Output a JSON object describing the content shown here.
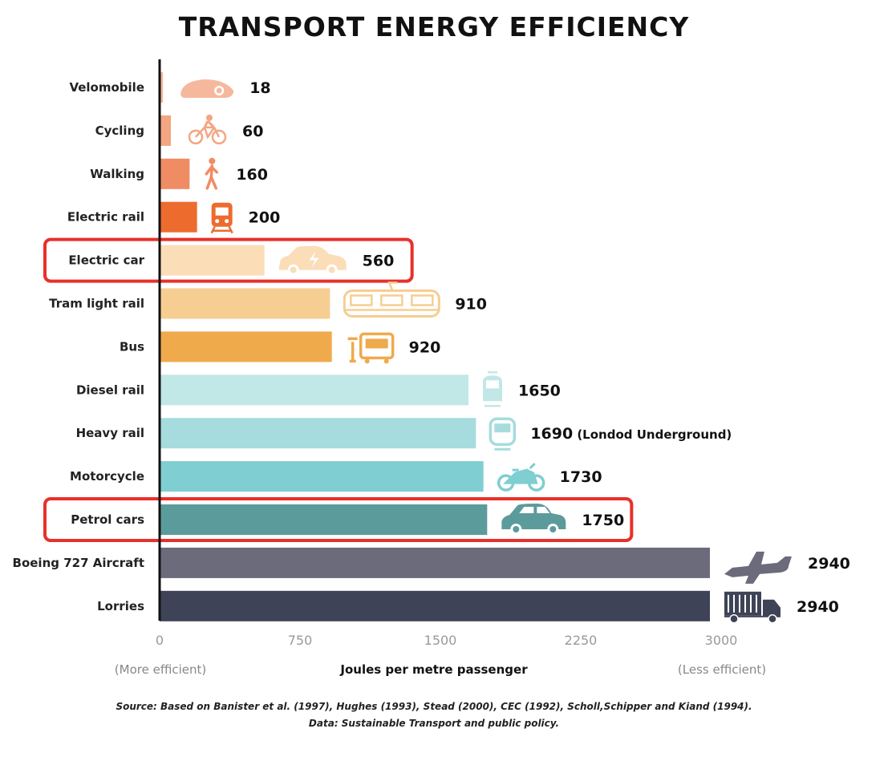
{
  "chart_data": {
    "type": "bar",
    "orientation": "horizontal",
    "title": "TRANSPORT ENERGY EFFICIENCY",
    "categories": [
      "Velomobile",
      "Cycling",
      "Walking",
      "Electric rail",
      "Electric car",
      "Tram light rail",
      "Bus",
      "Diesel rail",
      "Heavy rail",
      "Motorcycle",
      "Petrol cars",
      "Boeing 727 Aircraft",
      "Lorries"
    ],
    "values": [
      18,
      60,
      160,
      200,
      560,
      910,
      920,
      1650,
      1690,
      1730,
      1750,
      2940,
      2940
    ],
    "value_labels": [
      "18",
      "60",
      "160",
      "200",
      "560",
      "910",
      "920",
      "1650",
      "1690",
      "1730",
      "1750",
      "2940",
      "2940"
    ],
    "bar_colors": [
      "#F6B89D",
      "#F4A582",
      "#F08C64",
      "#EE6B2E",
      "#FBDDB8",
      "#F6CE92",
      "#EFAA4C",
      "#C2E7E7",
      "#A6DCDE",
      "#7FCED2",
      "#5C9B9B",
      "#6B6B7C",
      "#3F4357"
    ],
    "icon_colors": [
      "#F6B89D",
      "#F4A582",
      "#F08C64",
      "#EE6B2E",
      "#FBDDB8",
      "#F6CE92",
      "#EFAA4C",
      "#C2E7E7",
      "#A6DCDE",
      "#7FCED2",
      "#5C9B9B",
      "#6B6B7C",
      "#3F4357"
    ],
    "icons": [
      "velomobile-icon",
      "bicycle-icon",
      "walking-person-icon",
      "electric-train-icon",
      "electric-car-icon",
      "tram-icon",
      "bus-icon",
      "diesel-train-icon",
      "underground-train-icon",
      "motorcycle-icon",
      "car-icon",
      "airplane-icon",
      "lorry-icon"
    ],
    "annotations": [
      {
        "category": "Heavy rail",
        "text": "(Londod Underground)"
      }
    ],
    "highlighted": [
      "Electric car",
      "Petrol cars"
    ],
    "highlight_color": "#E8302A",
    "xlim": [
      0,
      3000
    ],
    "xticks": [
      0,
      750,
      1500,
      2250,
      3000
    ],
    "xtick_labels": [
      "0",
      "750",
      "1500",
      "2250",
      "3000"
    ],
    "xlabel": "Joules per metre passenger",
    "xlabel_left_note": "(More efficient)",
    "xlabel_right_note": "(Less efficient)",
    "grid": false
  },
  "source": {
    "line1": "Source: Based on Banister et al. (1997), Hughes (1993), Stead (2000), CEC (1992), Scholl,Schipper and Kiand (1994).",
    "line2": "Data: Sustainable Transport and public policy."
  }
}
